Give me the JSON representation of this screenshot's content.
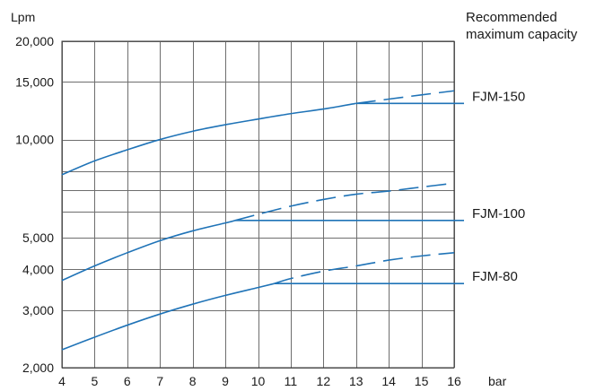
{
  "chart_data": {
    "type": "line",
    "title": "",
    "xlabel": "bar",
    "ylabel": "Lpm",
    "y_scale": "log",
    "xlim": [
      4,
      16
    ],
    "ylim": [
      2000,
      20000
    ],
    "x_ticks": [
      4,
      5,
      6,
      7,
      8,
      9,
      10,
      11,
      12,
      13,
      14,
      15,
      16
    ],
    "x_tick_labels": [
      "4",
      "5",
      "6",
      "7",
      "8",
      "9",
      "10",
      "11",
      "12",
      "13",
      "14",
      "15",
      "16"
    ],
    "y_ticks": [
      2000,
      3000,
      4000,
      5000,
      10000,
      15000,
      20000
    ],
    "y_tick_labels": [
      "2,000",
      "3,000",
      "4,000",
      "5,000",
      "10,000",
      "15,000",
      "20,000"
    ],
    "y_gridlines": [
      2000,
      3000,
      4000,
      5000,
      6000,
      7000,
      8000,
      10000,
      15000,
      20000
    ],
    "grid": true,
    "recommended_label": "Recommended\nmaximum capacity",
    "series": [
      {
        "name": "FJM-150",
        "x": [
          4,
          5,
          6,
          7,
          8,
          9,
          10,
          11,
          12,
          13
        ],
        "values": [
          7800,
          8600,
          9300,
          10000,
          10600,
          11100,
          11550,
          12000,
          12400,
          12900
        ],
        "dashed_x": [
          13,
          14,
          15,
          16
        ],
        "dashed_values": [
          12900,
          13300,
          13700,
          14100
        ],
        "recommended_max": 12900,
        "recommended_from_x": 13
      },
      {
        "name": "FJM-100",
        "x": [
          4,
          5,
          6,
          7,
          8,
          9,
          9.3
        ],
        "values": [
          3700,
          4100,
          4500,
          4900,
          5250,
          5550,
          5650
        ],
        "dashed_x": [
          9.3,
          10,
          11,
          12,
          13,
          14,
          15,
          16
        ],
        "dashed_values": [
          5650,
          5900,
          6250,
          6550,
          6800,
          6950,
          7150,
          7350
        ],
        "recommended_max": 5650,
        "recommended_from_x": 9.3
      },
      {
        "name": "FJM-80",
        "x": [
          4,
          5,
          6,
          7,
          8,
          9,
          10,
          10.5
        ],
        "values": [
          2270,
          2480,
          2700,
          2920,
          3130,
          3330,
          3520,
          3620
        ],
        "dashed_x": [
          10.5,
          11,
          12,
          13,
          14,
          15,
          16
        ],
        "dashed_values": [
          3620,
          3750,
          3950,
          4100,
          4270,
          4400,
          4500
        ],
        "recommended_max": 3620,
        "recommended_from_x": 10.5
      }
    ]
  }
}
